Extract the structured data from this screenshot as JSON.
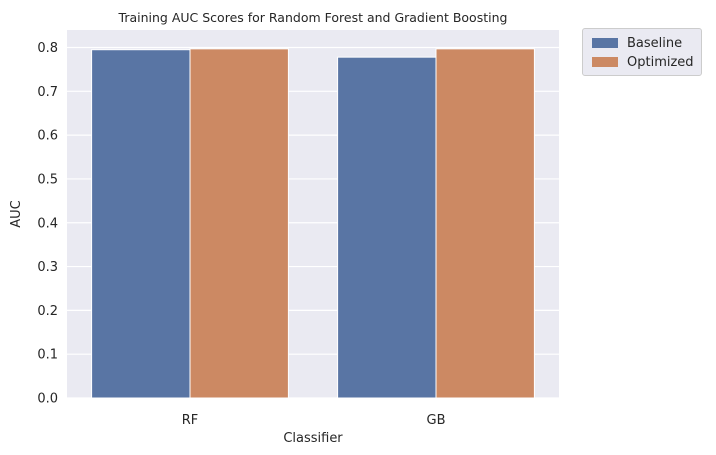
{
  "chart_data": {
    "type": "bar",
    "title": "Training AUC Scores for Random Forest and Gradient Boosting",
    "xlabel": "Classifier",
    "ylabel": "AUC",
    "categories": [
      "RF",
      "GB"
    ],
    "series": [
      {
        "name": "Baseline",
        "values": [
          0.795,
          0.778
        ],
        "color": "#5975a4"
      },
      {
        "name": "Optimized",
        "values": [
          0.797,
          0.797
        ],
        "color": "#cc8963"
      }
    ],
    "ylim": [
      0,
      0.84
    ],
    "yticks": [
      "0.0",
      "0.1",
      "0.2",
      "0.3",
      "0.4",
      "0.5",
      "0.6",
      "0.7",
      "0.8"
    ],
    "grid": true,
    "legend_position": "outside-top-right",
    "background": "#eaeaf2"
  }
}
